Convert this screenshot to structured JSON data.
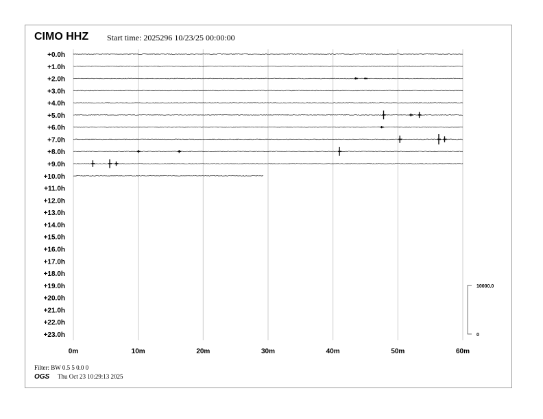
{
  "header": {
    "station": "CIMO HHZ",
    "start_time": "Start time: 2025296 10/23/25 00:00:00"
  },
  "footer": {
    "filter": "Filter: BW 0.5 5 0.0 0",
    "org": "OGS",
    "generated": "Thu Oct 23 10:29:13 2025"
  },
  "chart_data": {
    "type": "line",
    "title": "CIMO HHZ",
    "row_labels": [
      "+0.0h",
      "+1.0h",
      "+2.0h",
      "+3.0h",
      "+4.0h",
      "+5.0h",
      "+6.0h",
      "+7.0h",
      "+8.0h",
      "+9.0h",
      "+10.0h",
      "+11.0h",
      "+12.0h",
      "+13.0h",
      "+14.0h",
      "+15.0h",
      "+16.0h",
      "+17.0h",
      "+18.0h",
      "+19.0h",
      "+20.0h",
      "+21.0h",
      "+22.0h",
      "+23.0h"
    ],
    "x_ticks": [
      "0m",
      "10m",
      "20m",
      "30m",
      "40m",
      "50m",
      "60m"
    ],
    "xlim": [
      0,
      60
    ],
    "grid": true,
    "data_end": {
      "row_hour": 10,
      "minute": 29.3
    },
    "events": [
      {
        "hour": 2,
        "minute": 43.5,
        "amplitude": 0.15
      },
      {
        "hour": 2,
        "minute": 45,
        "amplitude": 0.1
      },
      {
        "hour": 5,
        "minute": 47.8,
        "amplitude": 0.6
      },
      {
        "hour": 5,
        "minute": 52,
        "amplitude": 0.2
      },
      {
        "hour": 5,
        "minute": 53.3,
        "amplitude": 0.4
      },
      {
        "hour": 6,
        "minute": 47.5,
        "amplitude": 0.15
      },
      {
        "hour": 7,
        "minute": 50.3,
        "amplitude": 0.5
      },
      {
        "hour": 7,
        "minute": 56.3,
        "amplitude": 0.7
      },
      {
        "hour": 7,
        "minute": 57.2,
        "amplitude": 0.4
      },
      {
        "hour": 8,
        "minute": 10,
        "amplitude": 0.2
      },
      {
        "hour": 8,
        "minute": 16.3,
        "amplitude": 0.2
      },
      {
        "hour": 8,
        "minute": 41,
        "amplitude": 0.6
      },
      {
        "hour": 9,
        "minute": 3,
        "amplitude": 0.45
      },
      {
        "hour": 9,
        "minute": 5.6,
        "amplitude": 0.6
      },
      {
        "hour": 9,
        "minute": 6.6,
        "amplitude": 0.3
      }
    ],
    "scale": {
      "top_label": "10000.0",
      "bottom_label": "0"
    }
  }
}
